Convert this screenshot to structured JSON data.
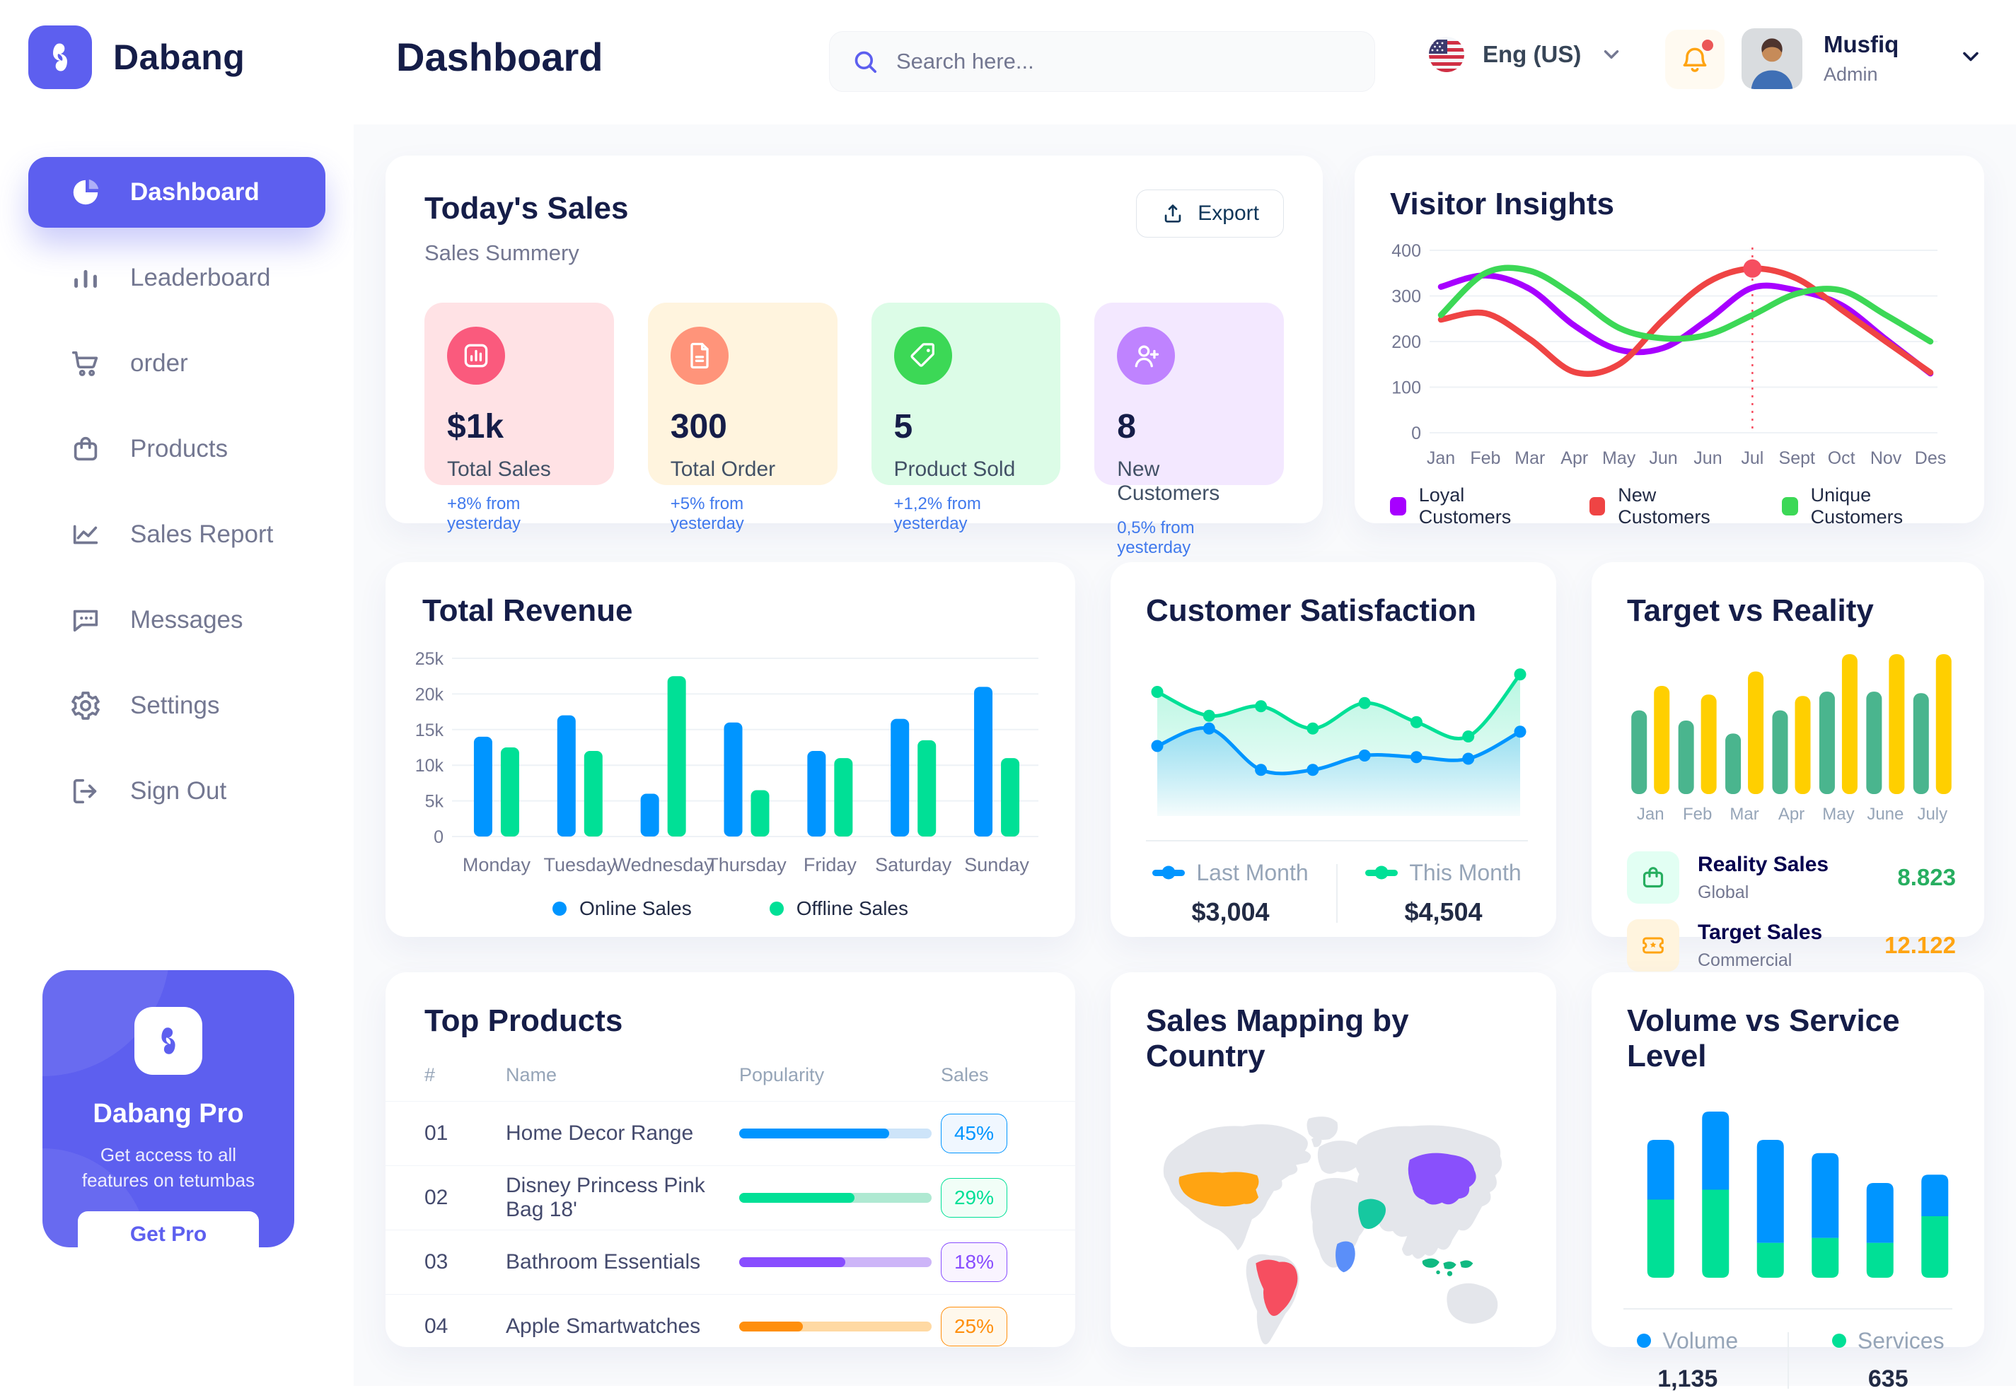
{
  "app": {
    "name": "Dabang"
  },
  "header": {
    "title": "Dashboard",
    "search_placeholder": "Search here...",
    "language": "Eng (US)",
    "user": {
      "name": "Musfiq",
      "role": "Admin"
    }
  },
  "sidebar": {
    "items": [
      {
        "label": "Dashboard",
        "icon": "pie",
        "active": true
      },
      {
        "label": "Leaderboard",
        "icon": "bars",
        "active": false
      },
      {
        "label": "order",
        "icon": "cart",
        "active": false
      },
      {
        "label": "Products",
        "icon": "bag",
        "active": false
      },
      {
        "label": "Sales Report",
        "icon": "linechart",
        "active": false
      },
      {
        "label": "Messages",
        "icon": "message",
        "active": false
      },
      {
        "label": "Settings",
        "icon": "gear",
        "active": false
      },
      {
        "label": "Sign Out",
        "icon": "signout",
        "active": false
      }
    ],
    "pro": {
      "title": "Dabang Pro",
      "subtitle_line1": "Get access to all",
      "subtitle_line2": "features on tetumbas",
      "button": "Get Pro"
    }
  },
  "today_sales": {
    "title": "Today's Sales",
    "subtitle": "Sales Summery",
    "export_label": "Export",
    "stats": [
      {
        "value": "$1k",
        "label": "Total Sales",
        "delta": "+8% from yesterday",
        "bg": "#FFE2E5",
        "icon_bg": "#FA5A7D",
        "icon": "statchart"
      },
      {
        "value": "300",
        "label": "Total Order",
        "delta": "+5% from yesterday",
        "bg": "#FFF4DE",
        "icon_bg": "#FF947A",
        "icon": "file"
      },
      {
        "value": "5",
        "label": "Product Sold",
        "delta": "+1,2% from yesterday",
        "bg": "#DCFCE7",
        "icon_bg": "#3CD856",
        "icon": "tag"
      },
      {
        "value": "8",
        "label": "New Customers",
        "delta": "0,5% from yesterday",
        "bg": "#F3E8FF",
        "icon_bg": "#BF83FF",
        "icon": "userplus"
      }
    ]
  },
  "top_products": {
    "title": "Top Products",
    "columns": [
      "#",
      "Name",
      "Popularity",
      "Sales"
    ],
    "rows": [
      {
        "num": "01",
        "name": "Home Decor Range",
        "fill_pct": 78,
        "color": "#0095FF",
        "track": "#CDE4F9",
        "sales": "45%",
        "badge_bg": "#F0F7FF"
      },
      {
        "num": "02",
        "name": "Disney Princess Pink Bag 18'",
        "fill_pct": 60,
        "color": "#00E096",
        "track": "#AFE9D2",
        "sales": "29%",
        "badge_bg": "#F1FEF7"
      },
      {
        "num": "03",
        "name": "Bathroom Essentials",
        "fill_pct": 55,
        "color": "#884DFF",
        "track": "#CDB5F8",
        "sales": "18%",
        "badge_bg": "#F9F4FF"
      },
      {
        "num": "04",
        "name": "Apple Smartwatches",
        "fill_pct": 33,
        "color": "#FF8F0D",
        "track": "#FFD9A3",
        "sales": "25%",
        "badge_bg": "#FFF8EC"
      }
    ]
  },
  "sales_mapping": {
    "title": "Sales Mapping by Country",
    "highlighted": [
      {
        "name": "United States",
        "color": "#FFA412"
      },
      {
        "name": "Brazil",
        "color": "#F64E60"
      },
      {
        "name": "China",
        "color": "#8950FC"
      },
      {
        "name": "Saudi Arabia",
        "color": "#16C8A0"
      },
      {
        "name": "DR Congo",
        "color": "#5B8FF9"
      },
      {
        "name": "Indonesia",
        "color": "#10B981"
      }
    ]
  },
  "chart_data": [
    {
      "id": "visitor_insights",
      "type": "line",
      "title": "Visitor Insights",
      "x": [
        "Jan",
        "Feb",
        "Mar",
        "Apr",
        "May",
        "Jun",
        "Jun",
        "Jul",
        "Sept",
        "Oct",
        "Nov",
        "Des"
      ],
      "ylim": [
        0,
        400
      ],
      "yticks": [
        0,
        100,
        200,
        300,
        400
      ],
      "grid": true,
      "legend_position": "bottom",
      "series": [
        {
          "name": "Loyal Customers",
          "color": "#A700FF",
          "values": [
            320,
            345,
            315,
            235,
            182,
            186,
            248,
            318,
            312,
            280,
            205,
            130
          ]
        },
        {
          "name": "New Customers",
          "color": "#EF4444",
          "values": [
            248,
            262,
            205,
            133,
            150,
            248,
            330,
            360,
            338,
            270,
            200,
            132
          ]
        },
        {
          "name": "Unique Customers",
          "color": "#3CD856",
          "values": [
            258,
            350,
            355,
            300,
            230,
            207,
            215,
            258,
            305,
            312,
            258,
            200
          ]
        }
      ],
      "highlight": {
        "series": "New Customers",
        "index": 7
      }
    },
    {
      "id": "total_revenue",
      "type": "bar",
      "title": "Total Revenue",
      "categories": [
        "Monday",
        "Tuesday",
        "Wednesday",
        "Thursday",
        "Friday",
        "Saturday",
        "Sunday"
      ],
      "ylim": [
        0,
        25
      ],
      "yticks": [
        "0",
        "5k",
        "10k",
        "15k",
        "20k",
        "25k"
      ],
      "grid": true,
      "legend_position": "bottom",
      "series": [
        {
          "name": "Online Sales",
          "color": "#0095FF",
          "values": [
            14,
            17,
            6,
            16,
            12,
            16.5,
            21
          ]
        },
        {
          "name": "Offline Sales",
          "color": "#00E096",
          "values": [
            12.5,
            12,
            22.5,
            6.5,
            11,
            13.5,
            11
          ]
        }
      ]
    },
    {
      "id": "customer_satisfaction",
      "type": "area",
      "title": "Customer Satisfaction",
      "ylim": [
        0,
        100
      ],
      "grid": false,
      "legend_position": "bottom",
      "series": [
        {
          "name": "Last Month",
          "color": "#0095FF",
          "total": "$3,004",
          "values": [
            44,
            55,
            29,
            29,
            38,
            37,
            36,
            53
          ]
        },
        {
          "name": "This Month",
          "color": "#00E096",
          "total": "$4,504",
          "values": [
            78,
            63,
            69,
            55,
            71,
            59,
            50,
            89
          ]
        }
      ]
    },
    {
      "id": "target_vs_reality",
      "type": "bar",
      "title": "Target vs Reality",
      "categories": [
        "Jan",
        "Feb",
        "Mar",
        "Apr",
        "May",
        "June",
        "July"
      ],
      "ylim": [
        0,
        100
      ],
      "grid": false,
      "series": [
        {
          "name": "Reality Sales",
          "color": "#4AB58E",
          "values": [
            58,
            51,
            42,
            58,
            71,
            71,
            70
          ]
        },
        {
          "name": "Target Sales",
          "color": "#FFCF00",
          "values": [
            75,
            69,
            85,
            68,
            97,
            97,
            97
          ]
        }
      ],
      "legend_rows": [
        {
          "label": "Reality Sales",
          "sublabel": "Global",
          "value": "8.823",
          "value_color": "#27AE60",
          "icon": "bag",
          "icon_color": "#27AE60",
          "icon_bg": "#E2FFF3"
        },
        {
          "label": "Target Sales",
          "sublabel": "Commercial",
          "value": "12.122",
          "value_color": "#FFA412",
          "icon": "ticket",
          "icon_color": "#FFA412",
          "icon_bg": "#FFF4DE"
        }
      ]
    },
    {
      "id": "volume_service",
      "type": "stacked-bar",
      "title": "Volume vs Service Level",
      "categories": [
        "",
        "",
        "",
        "",
        "",
        ""
      ],
      "ylim": [
        0,
        100
      ],
      "grid": false,
      "legend_position": "bottom",
      "series": [
        {
          "name": "Volume",
          "color": "#0095FF",
          "total": "1,135",
          "values": [
            36,
            47,
            62,
            51,
            36,
            25
          ]
        },
        {
          "name": "Services",
          "color": "#00E096",
          "total": "635",
          "values": [
            47,
            53,
            21,
            24,
            21,
            37
          ]
        }
      ]
    }
  ]
}
